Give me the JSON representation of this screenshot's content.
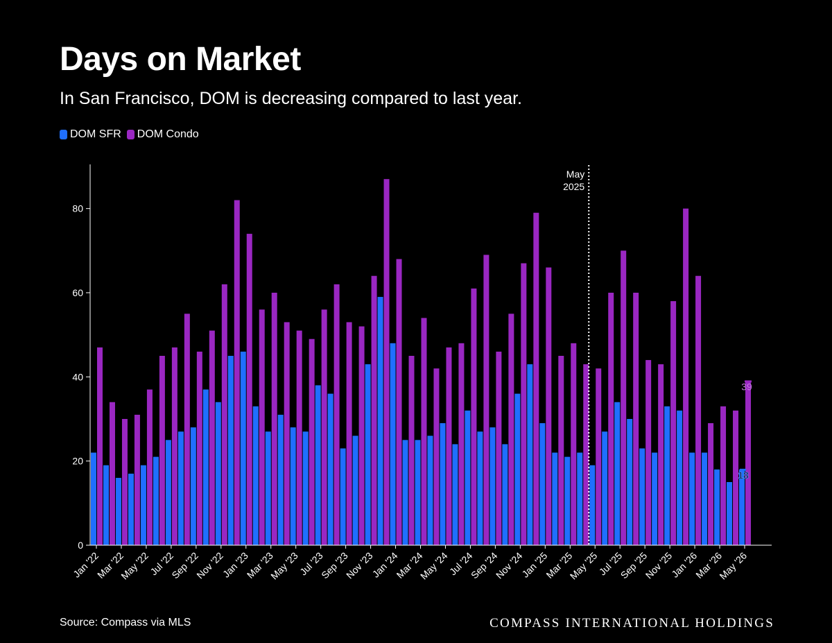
{
  "header": {
    "title": "Days on Market",
    "subtitle": "In San Francisco, DOM is decreasing compared to last year."
  },
  "legend": [
    {
      "label": "DOM SFR",
      "color": "#1f6fff"
    },
    {
      "label": "DOM Condo",
      "color": "#9a27c2"
    }
  ],
  "marker": {
    "line1": "May",
    "line2": "2025"
  },
  "footer": {
    "source": "Source: Compass via MLS",
    "brand": "COMPASS INTERNATIONAL HOLDINGS"
  },
  "chart_data": {
    "type": "bar",
    "categories": [
      "Jan '22",
      "Feb '22",
      "Mar '22",
      "Apr '22",
      "May '22",
      "Jun '22",
      "Jul '22",
      "Aug '22",
      "Sep '22",
      "Oct '22",
      "Nov '22",
      "Dec '22",
      "Jan '23",
      "Feb '23",
      "Mar '23",
      "Apr '23",
      "May '23",
      "Jun '23",
      "Jul '23",
      "Aug '23",
      "Sep '23",
      "Oct '23",
      "Nov '23",
      "Dec '23",
      "Jan '24",
      "Feb '24",
      "Mar '24",
      "Apr '24",
      "May '24",
      "Jun '24",
      "Jul '24",
      "Aug '24",
      "Sep '24",
      "Oct '24",
      "Nov '24",
      "Dec '24",
      "Jan '25",
      "Feb '25",
      "Mar '25",
      "Apr '25",
      "May '25",
      "Jun '25",
      "Jul '25",
      "Aug '25",
      "Sep '25",
      "Oct '25",
      "Nov '25",
      "Dec '25",
      "Jan '26",
      "Feb '26",
      "Mar '26",
      "Apr '26",
      "May '26"
    ],
    "x_tick_labels": [
      "Jan '22",
      "Mar '22",
      "May '22",
      "Jul '22",
      "Sep '22",
      "Nov '22",
      "Jan '23",
      "Mar '23",
      "May '23",
      "Jul '23",
      "Sep '23",
      "Nov '23",
      "Jan '24",
      "Mar '24",
      "May '24",
      "Jul '24",
      "Sep '24",
      "Nov '24",
      "Jan '25",
      "Mar '25",
      "May '25",
      "Jul '25",
      "Sep '25",
      "Nov '25",
      "Jan '26",
      "Mar '26",
      "May '26"
    ],
    "series": [
      {
        "name": "DOM SFR",
        "color": "#1f6fff",
        "values": [
          22,
          19,
          16,
          17,
          19,
          21,
          25,
          27,
          28,
          37,
          34,
          45,
          46,
          33,
          27,
          31,
          28,
          27,
          38,
          36,
          23,
          26,
          43,
          59,
          48,
          25,
          25,
          26,
          29,
          24,
          32,
          27,
          28,
          24,
          36,
          43,
          29,
          22,
          21,
          22,
          19,
          27,
          34,
          30,
          23,
          22,
          33,
          32,
          22,
          22,
          18,
          15,
          18
        ]
      },
      {
        "name": "DOM Condo",
        "color": "#9a27c2",
        "values": [
          47,
          34,
          30,
          31,
          37,
          45,
          47,
          55,
          46,
          51,
          62,
          82,
          74,
          56,
          60,
          53,
          51,
          49,
          56,
          62,
          53,
          52,
          64,
          87,
          68,
          45,
          54,
          42,
          47,
          48,
          61,
          69,
          46,
          55,
          67,
          79,
          66,
          45,
          48,
          43,
          42,
          60,
          70,
          60,
          44,
          43,
          58,
          80,
          64,
          29,
          33,
          32,
          39
        ]
      }
    ],
    "last_value_labels": [
      {
        "series": "DOM SFR",
        "value": "18"
      },
      {
        "series": "DOM Condo",
        "value": "39"
      }
    ],
    "y_ticks": [
      0,
      20,
      40,
      60,
      80
    ],
    "ylim": [
      0,
      90
    ],
    "marker_category": "May '25",
    "legend_position": "top-left",
    "grid": false
  }
}
